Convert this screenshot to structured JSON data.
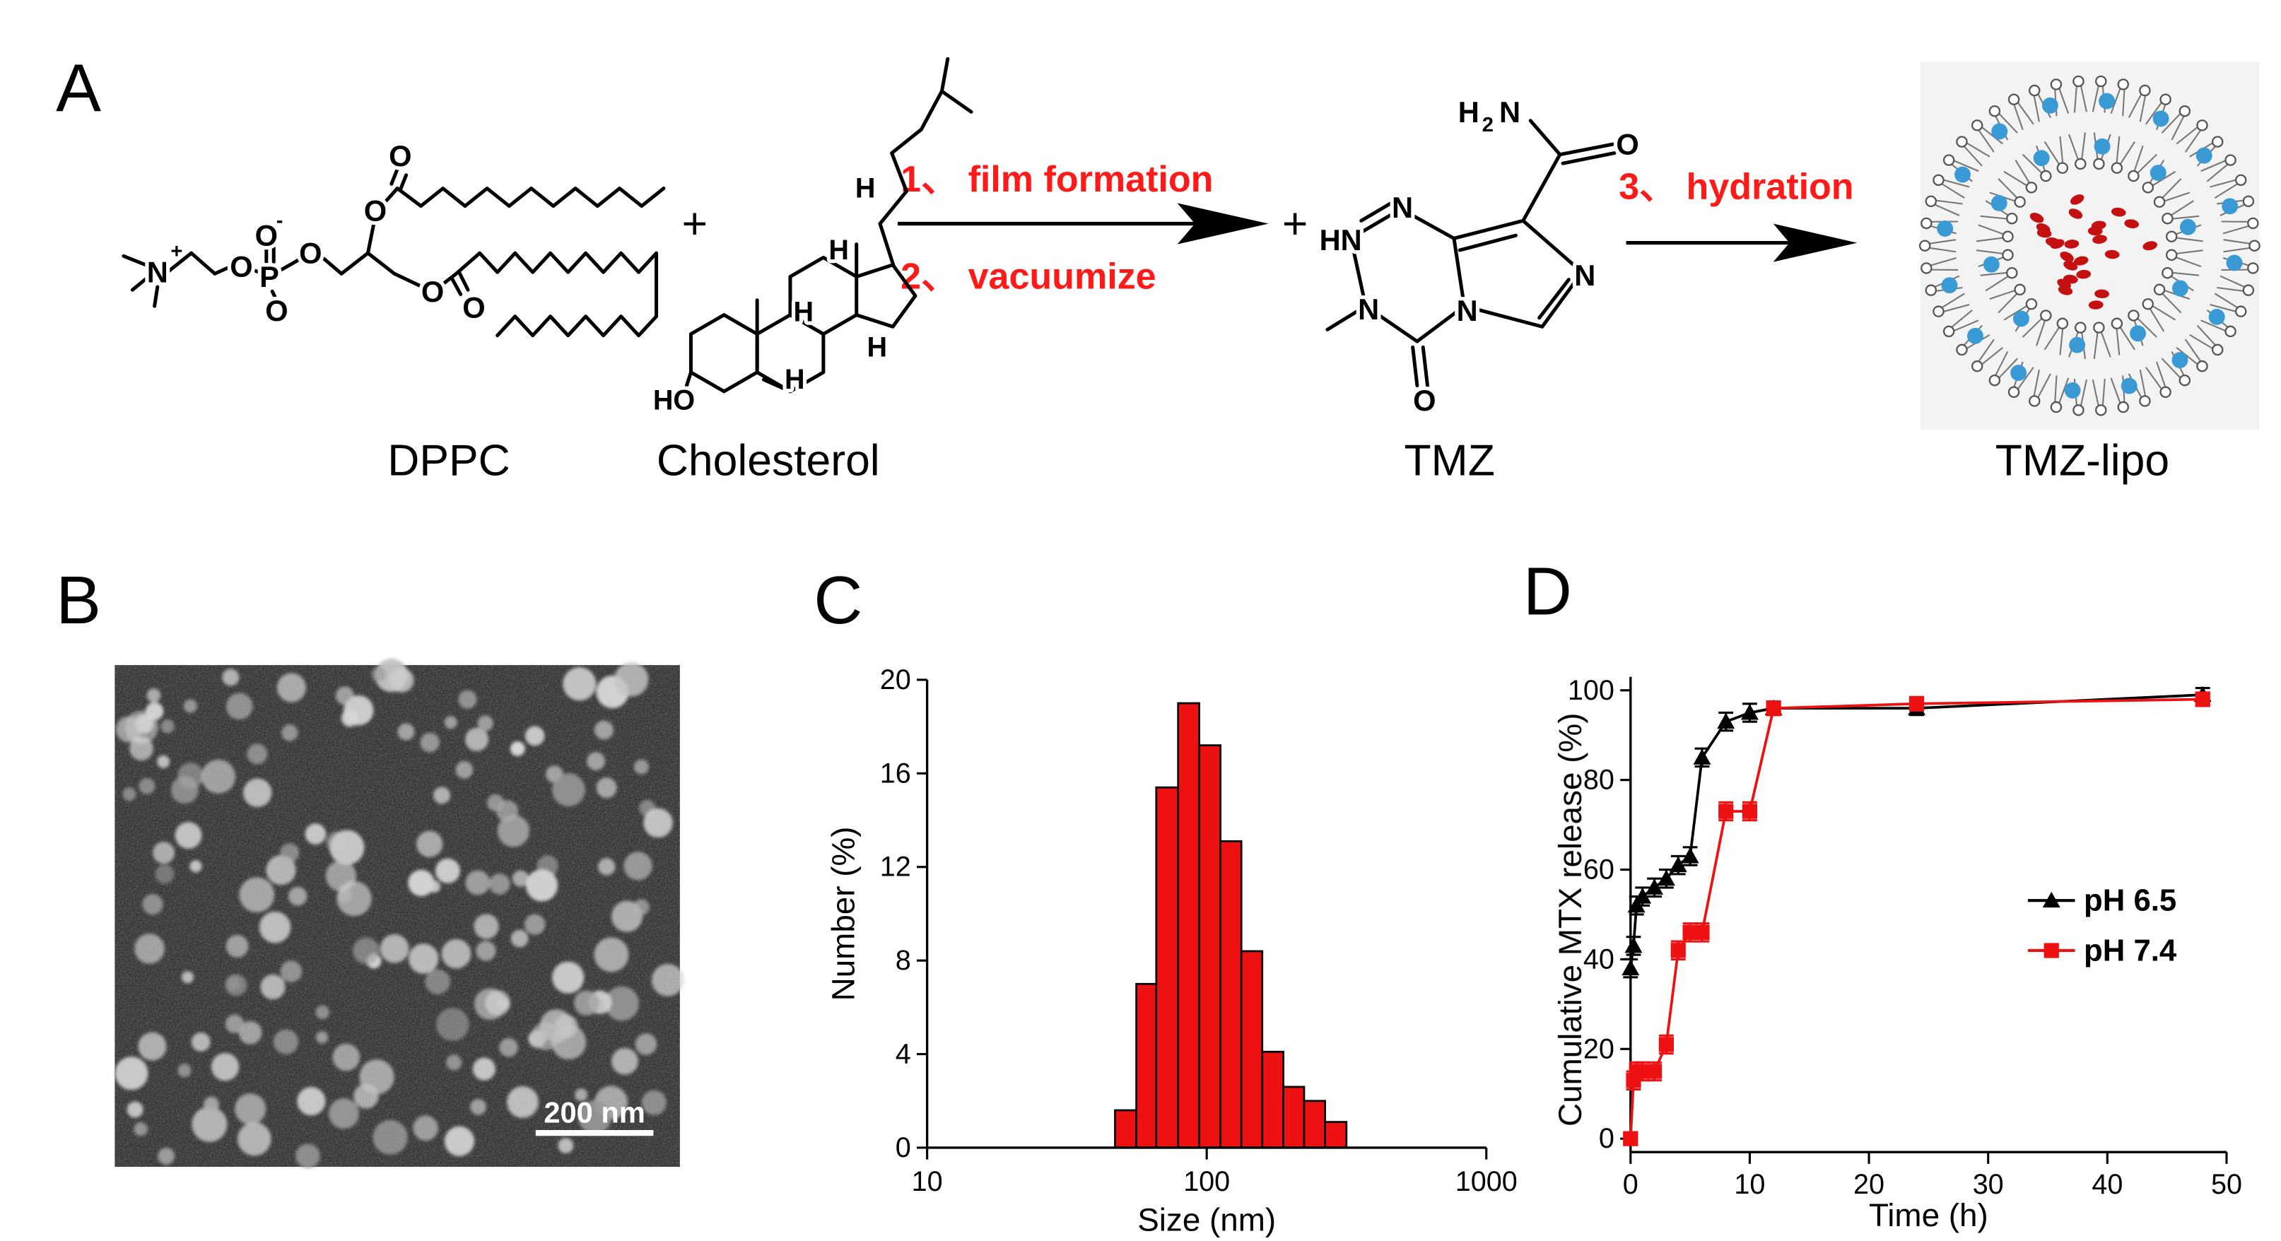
{
  "panels": {
    "a": "A",
    "b": "B",
    "c": "C",
    "d": "D"
  },
  "scheme": {
    "compounds": [
      "DPPC",
      "Cholesterol",
      "TMZ",
      "TMZ-lipo"
    ],
    "steps": [
      "1、 film formation",
      "2、 vacuumize",
      "3、 hydration"
    ],
    "plus": [
      "+",
      "+"
    ],
    "dppc_atoms": [
      "N",
      "+",
      "O",
      "O",
      "-",
      "P",
      "O",
      "O",
      "O",
      "O",
      "O",
      "O"
    ],
    "cholesterol_atoms": [
      "H",
      "H",
      "H",
      "H",
      "H",
      "HO"
    ],
    "tmz_atoms": [
      "H",
      "2",
      "N",
      "O",
      "HN",
      "N",
      "N",
      "N",
      "N",
      "O"
    ]
  },
  "tem": {
    "scale_bar": "200 nm"
  },
  "chart_data": [
    {
      "type": "histogram",
      "bins": [
        47,
        56,
        66,
        79,
        94,
        112,
        133,
        158,
        188,
        223,
        265,
        316
      ],
      "values": [
        1.6,
        7.0,
        15.4,
        19.0,
        17.2,
        13.1,
        8.4,
        4.1,
        2.6,
        2.0,
        1.1
      ],
      "color": "#ee1111",
      "log_x": true,
      "xlim": [
        10,
        1000
      ],
      "xticks": [
        10,
        100,
        1000
      ],
      "ylim": [
        0,
        20
      ],
      "yticks": [
        0,
        4,
        8,
        12,
        16,
        20
      ],
      "xlabel": "Size (nm)",
      "ylabel": "Number (%)"
    },
    {
      "type": "line",
      "x": [
        0,
        0.25,
        0.5,
        1,
        2,
        3,
        4,
        5,
        6,
        8,
        10,
        12,
        24,
        48
      ],
      "series": [
        {
          "name": "pH 6.5",
          "color": "#000000",
          "marker": "triangle",
          "values": [
            38,
            43,
            52,
            54,
            56,
            58,
            61,
            63,
            85,
            93,
            95,
            96,
            96,
            99
          ],
          "errors": [
            2,
            2,
            2,
            2,
            2,
            2,
            2,
            2,
            2,
            2,
            2,
            1.5,
            1.5,
            1.5
          ]
        },
        {
          "name": "pH 7.4",
          "color": "#ee1111",
          "marker": "square",
          "values": [
            0,
            13,
            15,
            15,
            15,
            21,
            42,
            46,
            46,
            73,
            73,
            96,
            97,
            98
          ],
          "errors": [
            1,
            2,
            2,
            2,
            2,
            2,
            2,
            2,
            2,
            2,
            2,
            1.5,
            1.5,
            1.5
          ]
        }
      ],
      "xlim": [
        0,
        50
      ],
      "xticks": [
        0,
        10,
        20,
        30,
        40,
        50
      ],
      "ylim": [
        -3,
        103
      ],
      "yticks": [
        0,
        20,
        40,
        60,
        80,
        100
      ],
      "xlabel": "Time (h)",
      "ylabel": "Cumulative MTX release (%)",
      "legend": "right"
    }
  ]
}
